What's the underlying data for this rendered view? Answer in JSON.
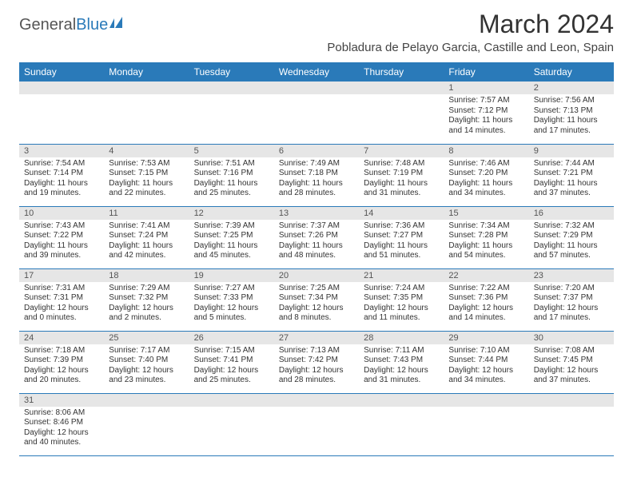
{
  "logo": {
    "general": "General",
    "blue": "Blue"
  },
  "title": "March 2024",
  "subtitle": "Pobladura de Pelayo Garcia, Castille and Leon, Spain",
  "colors": {
    "header_bg": "#2a7ab9",
    "header_text": "#ffffff",
    "daynum_bg": "#e6e6e6",
    "row_border": "#2a7ab9",
    "body_text": "#333333"
  },
  "fonts": {
    "title_size": 32,
    "subtitle_size": 15,
    "weekday_size": 12,
    "daynum_size": 11,
    "content_size": 10
  },
  "weekdays": [
    "Sunday",
    "Monday",
    "Tuesday",
    "Wednesday",
    "Thursday",
    "Friday",
    "Saturday"
  ],
  "weeks": [
    [
      {
        "day": "",
        "sunrise": "",
        "sunset": "",
        "daylight": ""
      },
      {
        "day": "",
        "sunrise": "",
        "sunset": "",
        "daylight": ""
      },
      {
        "day": "",
        "sunrise": "",
        "sunset": "",
        "daylight": ""
      },
      {
        "day": "",
        "sunrise": "",
        "sunset": "",
        "daylight": ""
      },
      {
        "day": "",
        "sunrise": "",
        "sunset": "",
        "daylight": ""
      },
      {
        "day": "1",
        "sunrise": "Sunrise: 7:57 AM",
        "sunset": "Sunset: 7:12 PM",
        "daylight": "Daylight: 11 hours and 14 minutes."
      },
      {
        "day": "2",
        "sunrise": "Sunrise: 7:56 AM",
        "sunset": "Sunset: 7:13 PM",
        "daylight": "Daylight: 11 hours and 17 minutes."
      }
    ],
    [
      {
        "day": "3",
        "sunrise": "Sunrise: 7:54 AM",
        "sunset": "Sunset: 7:14 PM",
        "daylight": "Daylight: 11 hours and 19 minutes."
      },
      {
        "day": "4",
        "sunrise": "Sunrise: 7:53 AM",
        "sunset": "Sunset: 7:15 PM",
        "daylight": "Daylight: 11 hours and 22 minutes."
      },
      {
        "day": "5",
        "sunrise": "Sunrise: 7:51 AM",
        "sunset": "Sunset: 7:16 PM",
        "daylight": "Daylight: 11 hours and 25 minutes."
      },
      {
        "day": "6",
        "sunrise": "Sunrise: 7:49 AM",
        "sunset": "Sunset: 7:18 PM",
        "daylight": "Daylight: 11 hours and 28 minutes."
      },
      {
        "day": "7",
        "sunrise": "Sunrise: 7:48 AM",
        "sunset": "Sunset: 7:19 PM",
        "daylight": "Daylight: 11 hours and 31 minutes."
      },
      {
        "day": "8",
        "sunrise": "Sunrise: 7:46 AM",
        "sunset": "Sunset: 7:20 PM",
        "daylight": "Daylight: 11 hours and 34 minutes."
      },
      {
        "day": "9",
        "sunrise": "Sunrise: 7:44 AM",
        "sunset": "Sunset: 7:21 PM",
        "daylight": "Daylight: 11 hours and 37 minutes."
      }
    ],
    [
      {
        "day": "10",
        "sunrise": "Sunrise: 7:43 AM",
        "sunset": "Sunset: 7:22 PM",
        "daylight": "Daylight: 11 hours and 39 minutes."
      },
      {
        "day": "11",
        "sunrise": "Sunrise: 7:41 AM",
        "sunset": "Sunset: 7:24 PM",
        "daylight": "Daylight: 11 hours and 42 minutes."
      },
      {
        "day": "12",
        "sunrise": "Sunrise: 7:39 AM",
        "sunset": "Sunset: 7:25 PM",
        "daylight": "Daylight: 11 hours and 45 minutes."
      },
      {
        "day": "13",
        "sunrise": "Sunrise: 7:37 AM",
        "sunset": "Sunset: 7:26 PM",
        "daylight": "Daylight: 11 hours and 48 minutes."
      },
      {
        "day": "14",
        "sunrise": "Sunrise: 7:36 AM",
        "sunset": "Sunset: 7:27 PM",
        "daylight": "Daylight: 11 hours and 51 minutes."
      },
      {
        "day": "15",
        "sunrise": "Sunrise: 7:34 AM",
        "sunset": "Sunset: 7:28 PM",
        "daylight": "Daylight: 11 hours and 54 minutes."
      },
      {
        "day": "16",
        "sunrise": "Sunrise: 7:32 AM",
        "sunset": "Sunset: 7:29 PM",
        "daylight": "Daylight: 11 hours and 57 minutes."
      }
    ],
    [
      {
        "day": "17",
        "sunrise": "Sunrise: 7:31 AM",
        "sunset": "Sunset: 7:31 PM",
        "daylight": "Daylight: 12 hours and 0 minutes."
      },
      {
        "day": "18",
        "sunrise": "Sunrise: 7:29 AM",
        "sunset": "Sunset: 7:32 PM",
        "daylight": "Daylight: 12 hours and 2 minutes."
      },
      {
        "day": "19",
        "sunrise": "Sunrise: 7:27 AM",
        "sunset": "Sunset: 7:33 PM",
        "daylight": "Daylight: 12 hours and 5 minutes."
      },
      {
        "day": "20",
        "sunrise": "Sunrise: 7:25 AM",
        "sunset": "Sunset: 7:34 PM",
        "daylight": "Daylight: 12 hours and 8 minutes."
      },
      {
        "day": "21",
        "sunrise": "Sunrise: 7:24 AM",
        "sunset": "Sunset: 7:35 PM",
        "daylight": "Daylight: 12 hours and 11 minutes."
      },
      {
        "day": "22",
        "sunrise": "Sunrise: 7:22 AM",
        "sunset": "Sunset: 7:36 PM",
        "daylight": "Daylight: 12 hours and 14 minutes."
      },
      {
        "day": "23",
        "sunrise": "Sunrise: 7:20 AM",
        "sunset": "Sunset: 7:37 PM",
        "daylight": "Daylight: 12 hours and 17 minutes."
      }
    ],
    [
      {
        "day": "24",
        "sunrise": "Sunrise: 7:18 AM",
        "sunset": "Sunset: 7:39 PM",
        "daylight": "Daylight: 12 hours and 20 minutes."
      },
      {
        "day": "25",
        "sunrise": "Sunrise: 7:17 AM",
        "sunset": "Sunset: 7:40 PM",
        "daylight": "Daylight: 12 hours and 23 minutes."
      },
      {
        "day": "26",
        "sunrise": "Sunrise: 7:15 AM",
        "sunset": "Sunset: 7:41 PM",
        "daylight": "Daylight: 12 hours and 25 minutes."
      },
      {
        "day": "27",
        "sunrise": "Sunrise: 7:13 AM",
        "sunset": "Sunset: 7:42 PM",
        "daylight": "Daylight: 12 hours and 28 minutes."
      },
      {
        "day": "28",
        "sunrise": "Sunrise: 7:11 AM",
        "sunset": "Sunset: 7:43 PM",
        "daylight": "Daylight: 12 hours and 31 minutes."
      },
      {
        "day": "29",
        "sunrise": "Sunrise: 7:10 AM",
        "sunset": "Sunset: 7:44 PM",
        "daylight": "Daylight: 12 hours and 34 minutes."
      },
      {
        "day": "30",
        "sunrise": "Sunrise: 7:08 AM",
        "sunset": "Sunset: 7:45 PM",
        "daylight": "Daylight: 12 hours and 37 minutes."
      }
    ],
    [
      {
        "day": "31",
        "sunrise": "Sunrise: 8:06 AM",
        "sunset": "Sunset: 8:46 PM",
        "daylight": "Daylight: 12 hours and 40 minutes."
      },
      {
        "day": "",
        "sunrise": "",
        "sunset": "",
        "daylight": ""
      },
      {
        "day": "",
        "sunrise": "",
        "sunset": "",
        "daylight": ""
      },
      {
        "day": "",
        "sunrise": "",
        "sunset": "",
        "daylight": ""
      },
      {
        "day": "",
        "sunrise": "",
        "sunset": "",
        "daylight": ""
      },
      {
        "day": "",
        "sunrise": "",
        "sunset": "",
        "daylight": ""
      },
      {
        "day": "",
        "sunrise": "",
        "sunset": "",
        "daylight": ""
      }
    ]
  ]
}
